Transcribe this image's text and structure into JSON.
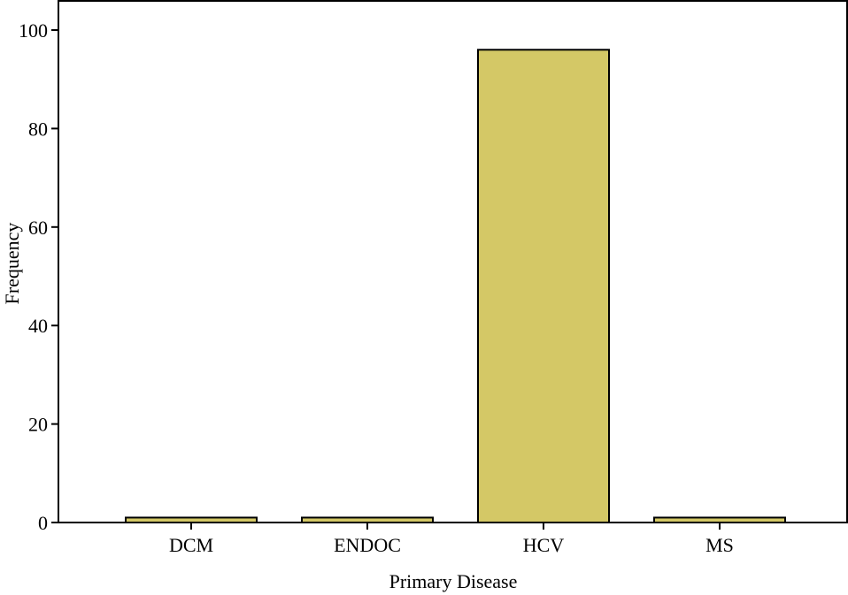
{
  "chart_data": {
    "type": "bar",
    "categories": [
      "DCM",
      "ENDOC",
      "HCV",
      "MS"
    ],
    "values": [
      1,
      1,
      96,
      1
    ],
    "title": "",
    "xlabel": "Primary Disease",
    "ylabel": "Frequency",
    "ylim": [
      0,
      100
    ],
    "yticks": [
      0,
      20,
      40,
      60,
      80,
      100
    ],
    "grid": false,
    "legend": "none"
  },
  "colors": {
    "bar_fill": "#d4c866",
    "bar_stroke": "#000000",
    "axis": "#000000",
    "background": "#ffffff"
  }
}
